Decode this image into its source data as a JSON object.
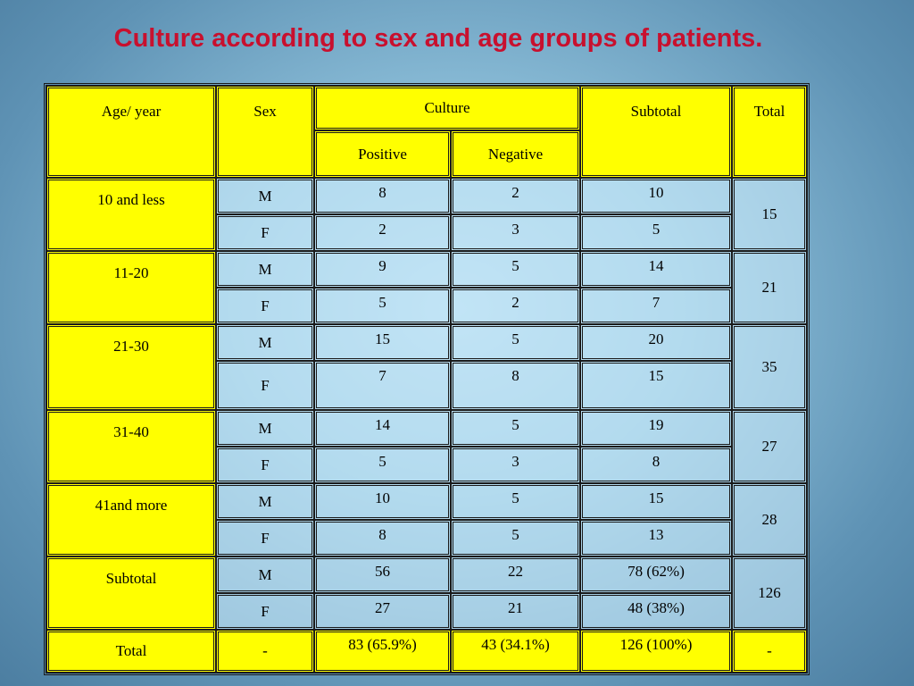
{
  "title": "Culture according to sex and age groups of patients.",
  "headers": {
    "age": "Age/ year",
    "sex": "Sex",
    "culture": "Culture",
    "positive": "Positive",
    "negative": "Negative",
    "subtotal": "Subtotal",
    "total": "Total"
  },
  "rows": [
    {
      "group": "10 and less",
      "total": "15",
      "m": {
        "sex": "M",
        "pos": "8",
        "neg": "2",
        "sub": "10"
      },
      "f": {
        "sex": "F",
        "pos": "2",
        "neg": "3",
        "sub": "5"
      }
    },
    {
      "group": "11-20",
      "total": "21",
      "m": {
        "sex": "M",
        "pos": "9",
        "neg": "5",
        "sub": "14"
      },
      "f": {
        "sex": "F",
        "pos": "5",
        "neg": "2",
        "sub": "7"
      }
    },
    {
      "group": "21-30",
      "total": "35",
      "m": {
        "sex": "M",
        "pos": "15",
        "neg": "5",
        "sub": "20"
      },
      "f": {
        "sex": "F",
        "pos": "7",
        "neg": "8",
        "sub": "15"
      }
    },
    {
      "group": "31-40",
      "total": "27",
      "m": {
        "sex": "M",
        "pos": "14",
        "neg": "5",
        "sub": "19"
      },
      "f": {
        "sex": "F",
        "pos": "5",
        "neg": "3",
        "sub": "8"
      }
    },
    {
      "group": "41and more",
      "total": "28",
      "m": {
        "sex": "M",
        "pos": "10",
        "neg": "5",
        "sub": "15"
      },
      "f": {
        "sex": "F",
        "pos": "8",
        "neg": "5",
        "sub": "13"
      }
    },
    {
      "group": "Subtotal",
      "total": "126",
      "m": {
        "sex": "M",
        "pos": "56",
        "neg": "22",
        "sub": "78 (62%)"
      },
      "f": {
        "sex": "F",
        "pos": "27",
        "neg": "21",
        "sub": "48 (38%)"
      }
    }
  ],
  "total_row": {
    "label": "Total",
    "sex": "-",
    "pos": "83 (65.9%)",
    "neg": "43 (34.1%)",
    "sub": "126 (100%)",
    "total": "-"
  }
}
